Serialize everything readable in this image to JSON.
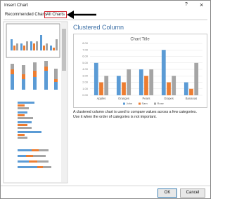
{
  "dialog": {
    "title": "Insert Chart",
    "help": "?",
    "close": "×",
    "tabs": [
      "Recommended Charts",
      "All Charts"
    ],
    "chart_heading": "Clustered Column",
    "description": [
      "A clustered column chart is used to compare values across a few categories.",
      "Use it when the order of categories is not important."
    ],
    "buttons": [
      "OK",
      "Cancel"
    ]
  },
  "chart_data": {
    "type": "bar",
    "title": "Chart Title",
    "categories": [
      "Apples",
      "Oranges",
      "Pears",
      "Grapes",
      "Bananas"
    ],
    "series": [
      {
        "name": "John",
        "color": "#5b9bd5",
        "values": [
          5,
          3,
          4,
          7,
          2
        ]
      },
      {
        "name": "Sam",
        "color": "#ed7d31",
        "values": [
          2,
          2,
          3,
          2,
          1
        ]
      },
      {
        "name": "Rose",
        "color": "#a5a5a5",
        "values": [
          3,
          4,
          4,
          3,
          5
        ]
      }
    ],
    "ylim": [
      0,
      8
    ],
    "yticks": [
      {
        "value": 0,
        "label": "0.00"
      },
      {
        "value": 1,
        "label": "1.00"
      },
      {
        "value": 2,
        "label": "2.00"
      },
      {
        "value": 3,
        "label": "3.00"
      },
      {
        "value": 4,
        "label": "4.00"
      },
      {
        "value": 5,
        "label": "5.00"
      },
      {
        "value": 6,
        "label": "6.00"
      },
      {
        "value": 7,
        "label": "7.00"
      },
      {
        "value": 8,
        "label": "8.00"
      }
    ],
    "grid": true,
    "legend": "bottom"
  }
}
